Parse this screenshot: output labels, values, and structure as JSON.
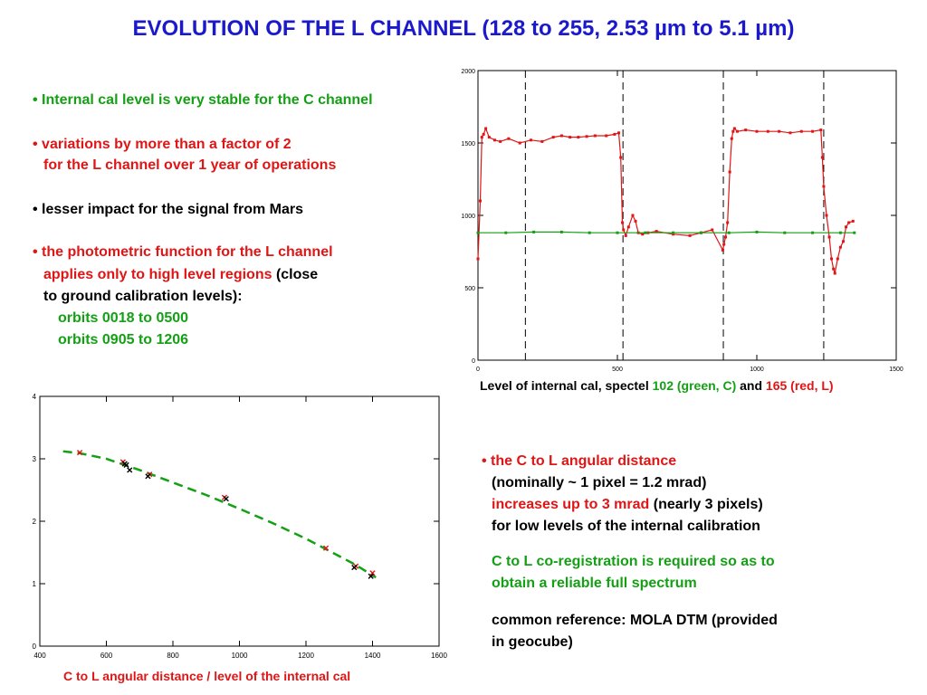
{
  "title": "EVOLUTION OF THE L CHANNEL (128 to 255, 2.53 µm to 5.1 µm)",
  "left_bullets": {
    "b1": "• Internal cal level is very stable for the C channel",
    "b2_l1": "• variations by more than a factor of 2",
    "b2_l2": "for the L channel over 1 year of operations",
    "b3": "• lesser impact for the signal from Mars",
    "b4_l1": "• the photometric function for the L channel",
    "b4_l2a": "applies only to high level regions",
    "b4_l2b": "(close",
    "b4_l3": "to ground calibration levels):",
    "b4_l4": "orbits 0018 to 0500",
    "b4_l5": "orbits 0905 to 1206"
  },
  "right_bullets": {
    "c1_l1": "• the C to L angular distance",
    "c1_l2": "(nominally ~ 1 pixel = 1.2 mrad)",
    "c1_l3a": "increases up to 3 mrad",
    "c1_l3b": "(nearly 3 pixels)",
    "c1_l4": "for low levels of the internal calibration",
    "c2_l1": "C to L co-registration is required so as to",
    "c2_l2": "obtain a reliable full spectrum",
    "c3_l1": "common reference: MOLA DTM (provided",
    "c3_l2": "in geocube)"
  },
  "caption_top": {
    "a": "Level of internal cal, spectel",
    "b": "102 (green, C)",
    "c": "and",
    "d": "165 (red, L)"
  },
  "caption_bottom": "C to L angular distance / level of the internal cal",
  "colors": {
    "title": "#1a1acc",
    "green": "#14a014",
    "red": "#e01515"
  },
  "chart_data": [
    {
      "type": "line",
      "xlim": [
        0,
        1500
      ],
      "ylim": [
        0,
        2000
      ],
      "xticks": [
        "0",
        "500",
        "1000",
        "1500"
      ],
      "yticks": [
        "0",
        "500",
        "1000",
        "1500",
        "2000"
      ],
      "vlines": [
        170,
        520,
        880,
        1240
      ],
      "series": [
        {
          "color": "red",
          "x": [
            0,
            8,
            14,
            20,
            28,
            40,
            60,
            80,
            110,
            150,
            190,
            230,
            270,
            300,
            330,
            360,
            390,
            420,
            460,
            490,
            505,
            512,
            518,
            522,
            530,
            540,
            555,
            565,
            575,
            590,
            610,
            640,
            700,
            760,
            800,
            840,
            878,
            882,
            888,
            895,
            903,
            910,
            915,
            920,
            930,
            960,
            1000,
            1040,
            1080,
            1120,
            1160,
            1200,
            1230,
            1235,
            1240,
            1250,
            1260,
            1268,
            1275,
            1280,
            1290,
            1300,
            1310,
            1320,
            1330,
            1345
          ],
          "y": [
            700,
            1100,
            1540,
            1560,
            1600,
            1540,
            1520,
            1510,
            1530,
            1500,
            1520,
            1510,
            1540,
            1550,
            1540,
            1540,
            1545,
            1550,
            1550,
            1560,
            1570,
            1400,
            950,
            900,
            860,
            920,
            1000,
            960,
            880,
            870,
            880,
            890,
            870,
            860,
            880,
            900,
            760,
            800,
            850,
            950,
            1300,
            1530,
            1580,
            1600,
            1580,
            1590,
            1580,
            1580,
            1580,
            1570,
            1580,
            1580,
            1590,
            1400,
            1200,
            1000,
            850,
            700,
            630,
            600,
            700,
            780,
            820,
            920,
            950,
            960
          ]
        },
        {
          "color": "green",
          "x": [
            0,
            100,
            200,
            300,
            400,
            500,
            600,
            700,
            800,
            900,
            1000,
            1100,
            1200,
            1300,
            1350
          ],
          "y": [
            880,
            880,
            885,
            885,
            880,
            880,
            880,
            880,
            880,
            880,
            885,
            880,
            880,
            880,
            880
          ]
        }
      ]
    },
    {
      "type": "scatter",
      "xlim": [
        400,
        1600
      ],
      "ylim": [
        0,
        4
      ],
      "xticks": [
        "400",
        "600",
        "800",
        "1000",
        "1200",
        "1400",
        "1600"
      ],
      "yticks": [
        "0",
        "1",
        "2",
        "3",
        "4"
      ],
      "points_red": [
        [
          520,
          3.1
        ],
        [
          650,
          2.95
        ],
        [
          730,
          2.75
        ],
        [
          955,
          2.38
        ],
        [
          1260,
          1.57
        ],
        [
          1350,
          1.28
        ],
        [
          1400,
          1.17
        ]
      ],
      "points_black": [
        [
          655,
          2.92
        ],
        [
          660,
          2.9
        ],
        [
          670,
          2.82
        ],
        [
          725,
          2.72
        ],
        [
          960,
          2.36
        ],
        [
          1345,
          1.26
        ],
        [
          1395,
          1.12
        ]
      ],
      "fit_x": [
        470,
        520,
        600,
        700,
        800,
        900,
        1000,
        1100,
        1200,
        1300,
        1350,
        1410
      ],
      "fit_y": [
        3.12,
        3.09,
        3.0,
        2.82,
        2.62,
        2.42,
        2.2,
        1.97,
        1.72,
        1.44,
        1.3,
        1.1
      ]
    }
  ]
}
